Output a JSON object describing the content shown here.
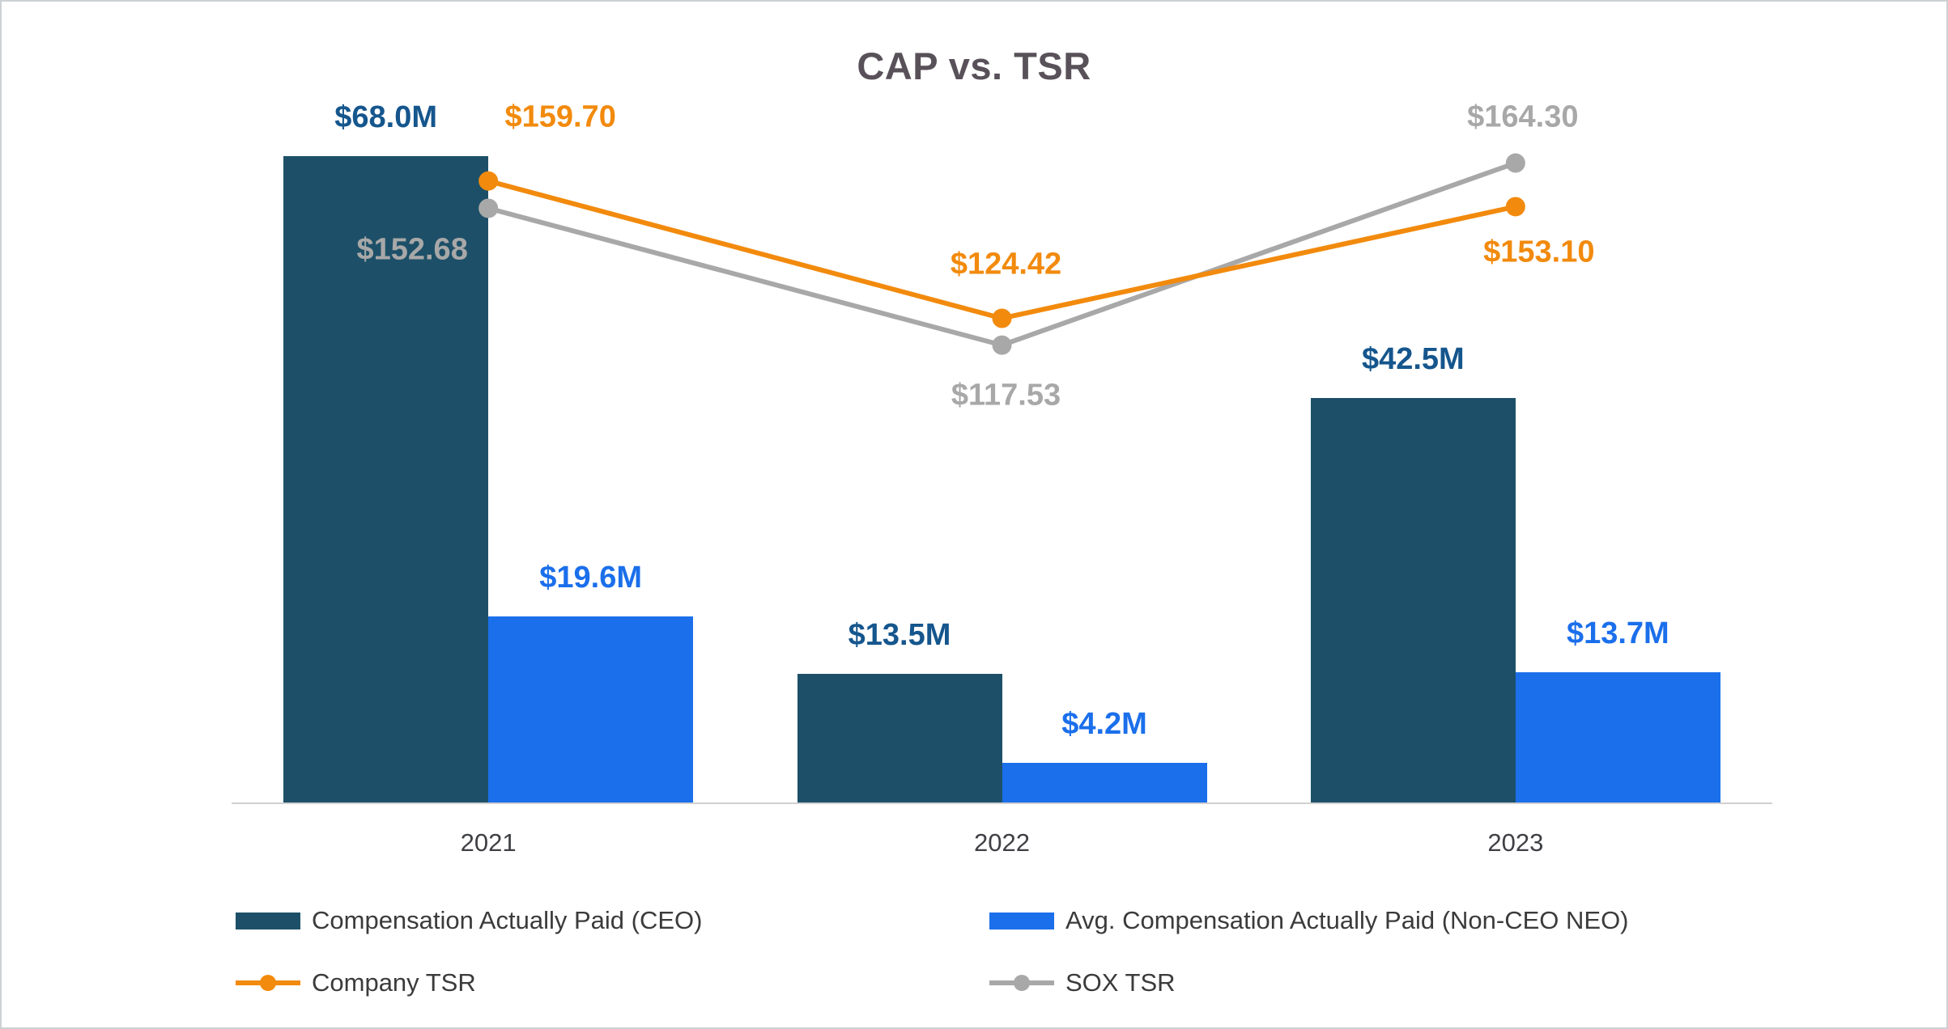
{
  "chart_data": {
    "type": "combo_bar_line",
    "title": "CAP vs. TSR",
    "categories": [
      "2021",
      "2022",
      "2023"
    ],
    "bar_series": [
      {
        "name": "Compensation Actually Paid (CEO)",
        "color": "#1D5068",
        "label_color": "#15568D",
        "values_millions_usd": [
          68.0,
          13.5,
          42.5
        ],
        "labels": [
          "$68.0M",
          "$13.5M",
          "$42.5M"
        ]
      },
      {
        "name": "Avg. Compensation Actually Paid (Non-CEO NEO)",
        "color": "#1B6FEB",
        "label_color": "#1B6FEB",
        "values_millions_usd": [
          19.6,
          4.2,
          13.7
        ],
        "labels": [
          "$19.6M",
          "$4.2M",
          "$13.7M"
        ]
      }
    ],
    "line_series": [
      {
        "name": "Company TSR",
        "color": "#F28A0D",
        "values": [
          159.7,
          124.42,
          153.1
        ],
        "labels": [
          "$159.70",
          "$124.42",
          "$153.10"
        ]
      },
      {
        "name": "SOX TSR",
        "color": "#A8A8A8",
        "values": [
          152.68,
          117.53,
          164.3
        ],
        "labels": [
          "$152.68",
          "$117.53",
          "$164.30"
        ]
      }
    ],
    "bar_axis": {
      "ylim": [
        0,
        74
      ]
    },
    "line_axis": {
      "ylim": [
        100,
        180
      ]
    },
    "grid": false,
    "legend_position": "bottom"
  },
  "theme": {
    "background": "#FFFFFF",
    "border_color": "#CDD1D4",
    "title_color": "#595159",
    "axis_label_color": "#3F4045",
    "legend_text_color": "#3B3B3B",
    "axis_line_color": "#D0D0D0"
  }
}
